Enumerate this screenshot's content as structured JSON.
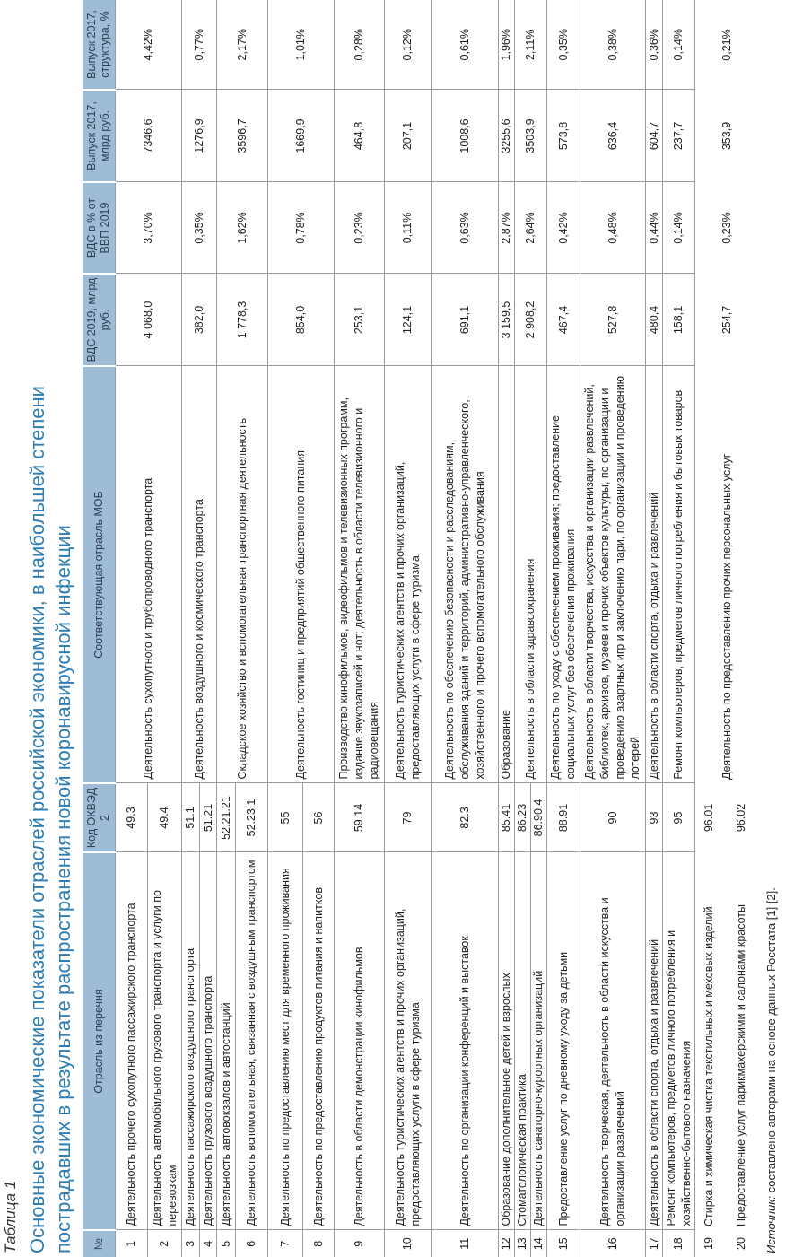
{
  "caption": "Таблица 1",
  "title": "Основные экономические показатели отраслей российской экономики, в наибольшей степени пострадавших в результате распространения новой коронавирусной инфекции",
  "table": {
    "headers": [
      "№",
      "Отрасль из перечня",
      "Код ОКВЭД 2",
      "Соответствующая отрасль МОБ",
      "ВДС 2019, млрд руб.",
      "ВДС в % от ВВП 2019",
      "Выпуск 2017, млрд руб.",
      "Выпуск 2017, структура, %"
    ],
    "groups": [
      {
        "mob": "Деятельность сухопутного и трубопроводного транспорта",
        "vds": "4 068,0",
        "vds_pct": "3,70%",
        "output": "7346,6",
        "output_pct": "4,42%",
        "rows": [
          {
            "n": "1",
            "name": "Деятельность прочего сухопутного пассажирского транспорта",
            "code": "49.3"
          },
          {
            "n": "2",
            "name": "Деятельность автомобильного грузового транспорта и услуги по перевозкам",
            "code": "49.4"
          }
        ]
      },
      {
        "mob": "Деятельность воздушного и космического транспорта",
        "vds": "382,0",
        "vds_pct": "0,35%",
        "output": "1276,9",
        "output_pct": "0,77%",
        "rows": [
          {
            "n": "3",
            "name": "Деятельность пассажирского воздушного транспорта",
            "code": "51.1"
          },
          {
            "n": "4",
            "name": "Деятельность грузового воздушного транспорта",
            "code": "51.21"
          }
        ]
      },
      {
        "mob": "Складское хозяйство и вспомогательная транспортная деятельность",
        "vds": "1 778,3",
        "vds_pct": "1,62%",
        "output": "3596,7",
        "output_pct": "2,17%",
        "rows": [
          {
            "n": "5",
            "name": "Деятельность автовокзалов и автостанций",
            "code": "52.21.21"
          },
          {
            "n": "6",
            "name": "Деятельность вспомогательная, связанная с воздушным транспортом",
            "code": "52.23.1"
          }
        ]
      },
      {
        "mob": "Деятельность гостиниц и предприятий общественного питания",
        "vds": "854,0",
        "vds_pct": "0,78%",
        "output": "1669,9",
        "output_pct": "1,01%",
        "rows": [
          {
            "n": "7",
            "name": "Деятельность по предоставлению мест для временного проживания",
            "code": "55"
          },
          {
            "n": "8",
            "name": "Деятельность по предоставлению продуктов питания и напитков",
            "code": "56"
          }
        ]
      },
      {
        "mob": "Производство кинофильмов, видеофильмов и телевизионных программ, издание звукозаписей и нот; деятельность в области телевизионного и радиовещания",
        "vds": "253,1",
        "vds_pct": "0,23%",
        "output": "464,8",
        "output_pct": "0,28%",
        "rows": [
          {
            "n": "9",
            "name": "Деятельность в области демонстрации кинофильмов",
            "code": "59.14"
          }
        ]
      },
      {
        "mob": "Деятельность туристических агентств и прочих организаций, предоставляющих услуги в сфере туризма",
        "vds": "124,1",
        "vds_pct": "0,11%",
        "output": "207,1",
        "output_pct": "0,12%",
        "rows": [
          {
            "n": "10",
            "name": "Деятельность туристических агентств и прочих организаций, предоставляющих услуги в сфере туризма",
            "code": "79"
          }
        ]
      },
      {
        "mob": "Деятельность по обеспечению безопасности и расследованиям, обслуживания зданий и территорий, административно-управленческого, хозяйственного и прочего вспомогательного обслуживания",
        "vds": "691,1",
        "vds_pct": "0,63%",
        "output": "1008,6",
        "output_pct": "0,61%",
        "rows": [
          {
            "n": "11",
            "name": "Деятельность по организации конференций и выставок",
            "code": "82.3"
          }
        ]
      },
      {
        "mob": "Образование",
        "vds": "3 159,5",
        "vds_pct": "2,87%",
        "output": "3255,6",
        "output_pct": "1,96%",
        "rows": [
          {
            "n": "12",
            "name": "Образование дополнительное детей и взрослых",
            "code": "85.41"
          }
        ]
      },
      {
        "mob": "Деятельность в области здравоохранения",
        "vds": "2 908,2",
        "vds_pct": "2,64%",
        "output": "3503,9",
        "output_pct": "2,11%",
        "rows": [
          {
            "n": "13",
            "name": "Стоматологическая практика",
            "code": "86.23"
          },
          {
            "n": "14",
            "name": "Деятельность санаторно-курортных организаций",
            "code": "86.90.4"
          }
        ]
      },
      {
        "mob": "Деятельность по уходу с обеспечением проживания; предоставление социальных услуг без обеспечения проживания",
        "vds": "467,4",
        "vds_pct": "0,42%",
        "output": "573,8",
        "output_pct": "0,35%",
        "rows": [
          {
            "n": "15",
            "name": "Предоставление услуг по дневному уходу за детьми",
            "code": "88.91"
          }
        ]
      },
      {
        "mob": "Деятельность в области творчества, искусства и организации развлечений, библиотек, архивов, музеев и прочих объектов культуры, по организации и проведению азартных игр и заключению пари, по организации и проведению лотерей",
        "vds": "527,8",
        "vds_pct": "0,48%",
        "output": "636,4",
        "output_pct": "0,38%",
        "rows": [
          {
            "n": "16",
            "name": "Деятельность творческая, деятельность в области искусства и организации развлечений",
            "code": "90"
          }
        ]
      },
      {
        "mob": "Деятельность в области спорта, отдыха и развлечений",
        "vds": "480,4",
        "vds_pct": "0,44%",
        "output": "604,7",
        "output_pct": "0,36%",
        "rows": [
          {
            "n": "17",
            "name": "Деятельность в области спорта, отдыха и развлечений",
            "code": "93"
          }
        ]
      },
      {
        "mob": "Ремонт компьютеров, предметов личного потребления и бытовых товаров",
        "vds": "158,1",
        "vds_pct": "0,14%",
        "output": "237,7",
        "output_pct": "0,14%",
        "rows": [
          {
            "n": "18",
            "name": "Ремонт компьютеров, предметов личного потребления и хозяйственно-бытового назначения",
            "code": "95"
          }
        ]
      },
      {
        "mob": "Деятельность по предоставлению прочих персональных услуг",
        "vds": "254,7",
        "vds_pct": "0,23%",
        "output": "353,9",
        "output_pct": "0,21%",
        "rows": [
          {
            "n": "19",
            "name": "Стирка и химическая чистка текстильных и меховых изделий",
            "code": "96.01"
          },
          {
            "n": "20",
            "name": "Предоставление услуг парикмахерскими и салонами красоты",
            "code": "96.02"
          }
        ]
      }
    ]
  },
  "footer": {
    "label": "Источник:",
    "text": " составлено авторами на основе данных Росстата [1] [2]."
  }
}
